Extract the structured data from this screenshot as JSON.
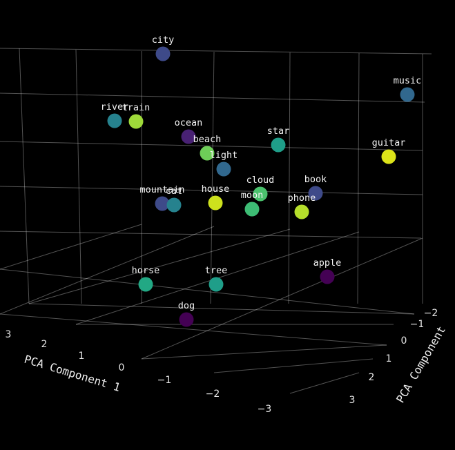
{
  "chart_data": {
    "type": "scatter",
    "title": "",
    "xlabel": "PCA Component 1",
    "ylabel": "PCA Component",
    "zlabel": "",
    "x_ticks": [
      "3",
      "2",
      "1",
      "0",
      "−1",
      "−2",
      "−3"
    ],
    "y_ticks": [
      "−2",
      "−1",
      "0",
      "1",
      "2",
      "3"
    ],
    "grid": true,
    "colorscale": "viridis",
    "points": [
      {
        "label": "city",
        "color": "#3e4a89"
      },
      {
        "label": "music",
        "color": "#31688e"
      },
      {
        "label": "river",
        "color": "#26828e"
      },
      {
        "label": "train",
        "color": "#9fda3a"
      },
      {
        "label": "ocean",
        "color": "#482173"
      },
      {
        "label": "beach",
        "color": "#6ece58"
      },
      {
        "label": "light",
        "color": "#31688e"
      },
      {
        "label": "star",
        "color": "#1f9e89"
      },
      {
        "label": "guitar",
        "color": "#dce319"
      },
      {
        "label": "mountain",
        "color": "#3e4a89"
      },
      {
        "label": "cat",
        "color": "#26828e"
      },
      {
        "label": "house",
        "color": "#cde11d"
      },
      {
        "label": "cloud",
        "color": "#4ac16d"
      },
      {
        "label": "moon",
        "color": "#3dbc74"
      },
      {
        "label": "book",
        "color": "#3e4a89"
      },
      {
        "label": "phone",
        "color": "#b5de2b"
      },
      {
        "label": "horse",
        "color": "#22a884"
      },
      {
        "label": "tree",
        "color": "#1f9e89"
      },
      {
        "label": "apple",
        "color": "#440154"
      },
      {
        "label": "dog",
        "color": "#440154"
      }
    ]
  }
}
